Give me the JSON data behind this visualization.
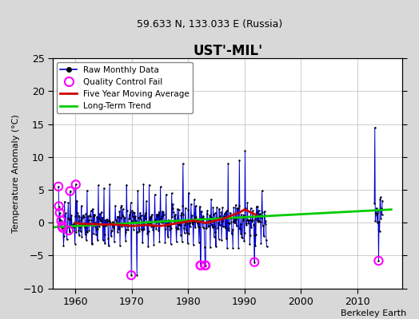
{
  "title": "UST'-MIL'",
  "subtitle": "59.633 N, 133.033 E (Russia)",
  "ylabel": "Temperature Anomaly (°C)",
  "credit": "Berkeley Earth",
  "xlim": [
    1956,
    2018
  ],
  "ylim": [
    -10,
    25
  ],
  "yticks": [
    -10,
    -5,
    0,
    5,
    10,
    15,
    20,
    25
  ],
  "xticks": [
    1960,
    1970,
    1980,
    1990,
    2000,
    2010
  ],
  "bg_color": "#d8d8d8",
  "plot_bg_color": "#ffffff",
  "raw_color": "#0000cc",
  "qc_color": "#ff00ff",
  "mavg_color": "#cc0000",
  "trend_color": "#00cc00",
  "trend_x": [
    1956,
    2016
  ],
  "trend_y": [
    -0.7,
    2.0
  ],
  "mavg_x": [
    1960,
    1961,
    1962,
    1963,
    1964,
    1965,
    1966,
    1967,
    1968,
    1969,
    1970,
    1971,
    1972,
    1973,
    1974,
    1975,
    1976,
    1977,
    1978,
    1979,
    1980,
    1981,
    1982,
    1983,
    1984,
    1985,
    1986,
    1987,
    1988,
    1989,
    1990,
    1991,
    1992
  ],
  "mavg_y": [
    -0.1,
    -0.15,
    -0.2,
    -0.2,
    -0.25,
    -0.3,
    -0.25,
    -0.3,
    -0.35,
    -0.4,
    -0.5,
    -0.45,
    -0.4,
    -0.35,
    -0.45,
    -0.5,
    -0.4,
    -0.25,
    -0.1,
    0.05,
    0.2,
    0.3,
    0.15,
    -0.05,
    0.1,
    0.35,
    0.55,
    0.85,
    1.2,
    1.5,
    2.0,
    1.6,
    1.2
  ],
  "segment_gaps": [
    [
      1993.99,
      2013.0
    ]
  ]
}
